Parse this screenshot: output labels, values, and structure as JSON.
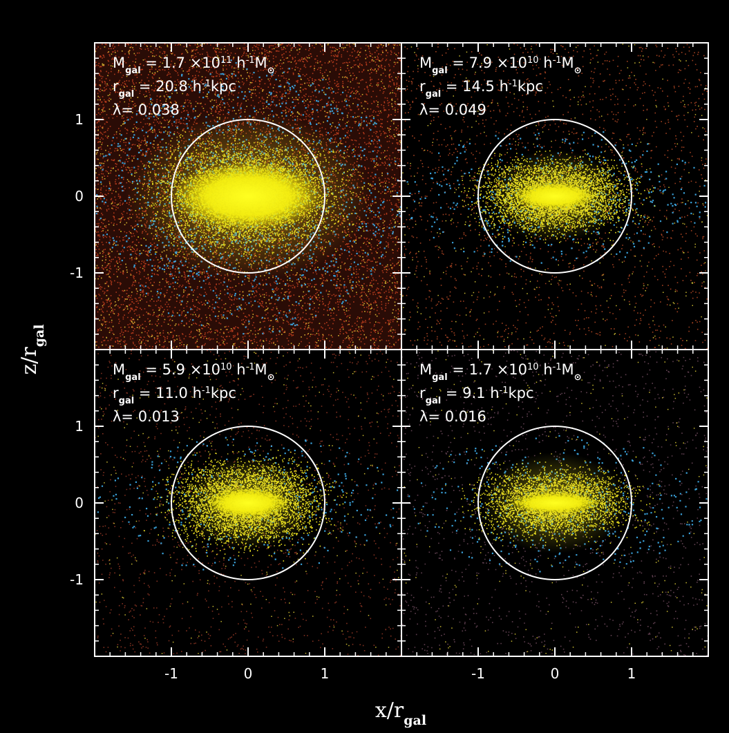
{
  "figure": {
    "xlabel": [
      {
        "t": "x/r"
      },
      {
        "t": "gal",
        "s": "sub"
      }
    ],
    "ylabel": [
      {
        "t": "z/r"
      },
      {
        "t": "gal",
        "s": "sub"
      }
    ]
  },
  "chart_data": [
    {
      "type": "particle-image",
      "xlim": [
        -2,
        2
      ],
      "ylim": [
        -2,
        2
      ],
      "xticks": [
        -1,
        0,
        1
      ],
      "yticks": [
        -1,
        0,
        1
      ],
      "circle_radius": 1,
      "annotations": [
        [
          {
            "t": "M"
          },
          {
            "t": "gal",
            "s": "sub"
          },
          {
            "t": " = 1.7 ×10"
          },
          {
            "t": "11",
            "s": "sup"
          },
          {
            "t": " h"
          },
          {
            "t": "-1",
            "s": "sup"
          },
          {
            "t": "M"
          },
          {
            "t": "⊙",
            "s": "sub"
          }
        ],
        [
          {
            "t": "r"
          },
          {
            "t": "gal",
            "s": "sub"
          },
          {
            "t": " = 20.8 h"
          },
          {
            "t": "-1",
            "s": "sup"
          },
          {
            "t": "kpc"
          }
        ],
        [
          {
            "t": "λ= 0.038"
          }
        ]
      ]
    },
    {
      "type": "particle-image",
      "xlim": [
        -2,
        2
      ],
      "ylim": [
        -2,
        2
      ],
      "xticks": [
        -1,
        0,
        1
      ],
      "yticks": [
        -1,
        0,
        1
      ],
      "circle_radius": 1,
      "annotations": [
        [
          {
            "t": "M"
          },
          {
            "t": "gal",
            "s": "sub"
          },
          {
            "t": " = 7.9 ×10"
          },
          {
            "t": "10",
            "s": "sup"
          },
          {
            "t": " h"
          },
          {
            "t": "-1",
            "s": "sup"
          },
          {
            "t": "M"
          },
          {
            "t": "⊙",
            "s": "sub"
          }
        ],
        [
          {
            "t": "r"
          },
          {
            "t": "gal",
            "s": "sub"
          },
          {
            "t": " = 14.5 h"
          },
          {
            "t": "-1",
            "s": "sup"
          },
          {
            "t": "kpc"
          }
        ],
        [
          {
            "t": "λ= 0.049"
          }
        ]
      ]
    },
    {
      "type": "particle-image",
      "xlim": [
        -2,
        2
      ],
      "ylim": [
        -2,
        2
      ],
      "xticks": [
        -1,
        0,
        1
      ],
      "yticks": [
        -1,
        0,
        1
      ],
      "circle_radius": 1,
      "annotations": [
        [
          {
            "t": "M"
          },
          {
            "t": "gal",
            "s": "sub"
          },
          {
            "t": " = 5.9 ×10"
          },
          {
            "t": "10",
            "s": "sup"
          },
          {
            "t": " h"
          },
          {
            "t": "-1",
            "s": "sup"
          },
          {
            "t": "M"
          },
          {
            "t": "⊙",
            "s": "sub"
          }
        ],
        [
          {
            "t": "r"
          },
          {
            "t": "gal",
            "s": "sub"
          },
          {
            "t": " = 11.0 h"
          },
          {
            "t": "-1",
            "s": "sup"
          },
          {
            "t": "kpc"
          }
        ],
        [
          {
            "t": "λ= 0.013"
          }
        ]
      ]
    },
    {
      "type": "particle-image",
      "xlim": [
        -2,
        2
      ],
      "ylim": [
        -2,
        2
      ],
      "xticks": [
        -1,
        0,
        1
      ],
      "yticks": [
        -1,
        0,
        1
      ],
      "circle_radius": 1,
      "annotations": [
        [
          {
            "t": "M"
          },
          {
            "t": "gal",
            "s": "sub"
          },
          {
            "t": " = 1.7 ×10"
          },
          {
            "t": "10",
            "s": "sup"
          },
          {
            "t": " h"
          },
          {
            "t": "-1",
            "s": "sup"
          },
          {
            "t": "M"
          },
          {
            "t": "⊙",
            "s": "sub"
          }
        ],
        [
          {
            "t": "r"
          },
          {
            "t": "gal",
            "s": "sub"
          },
          {
            "t": " = 9.1 h"
          },
          {
            "t": "-1",
            "s": "sup"
          },
          {
            "t": "kpc"
          }
        ],
        [
          {
            "t": "λ= 0.016"
          }
        ]
      ]
    }
  ]
}
